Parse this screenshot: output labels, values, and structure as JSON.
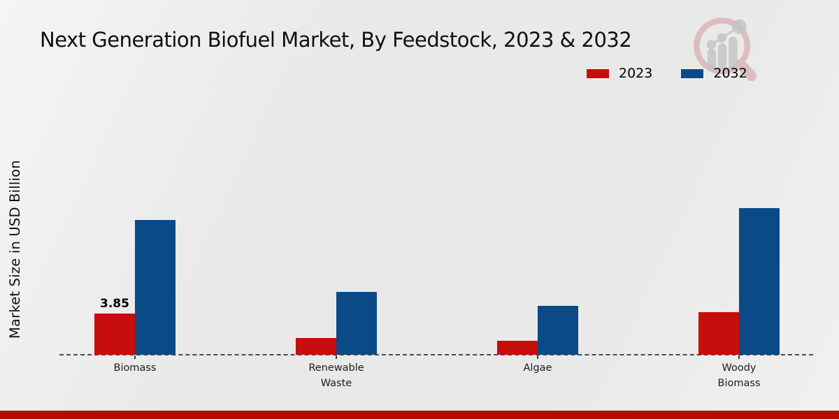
{
  "chart_data": {
    "type": "bar",
    "title": "Next Generation Biofuel Market, By Feedstock, 2023 & 2032",
    "ylabel": "Market Size in USD Billion",
    "xlabel": "",
    "categories": [
      "Biomass",
      "Renewable Waste",
      "Algae",
      "Woody Biomass"
    ],
    "series": [
      {
        "name": "2023",
        "color": "#c80d0d",
        "values": [
          3.85,
          1.55,
          1.3,
          4.0
        ]
      },
      {
        "name": "2032",
        "color": "#0b4a87",
        "values": [
          12.6,
          5.9,
          4.6,
          13.7
        ]
      }
    ],
    "value_labels": [
      {
        "category": "Biomass",
        "series": "2023",
        "text": "3.85"
      }
    ],
    "ylim": [
      0,
      15
    ],
    "grid": false,
    "legend_position": "top-right",
    "x_axis_style": "dashed"
  },
  "colors": {
    "footer_bar": "#b70b02",
    "axis": "#4a4a4a",
    "background": "#e9e9e9"
  },
  "watermark": {
    "icon": "magnifier-bar-chart-logo"
  }
}
